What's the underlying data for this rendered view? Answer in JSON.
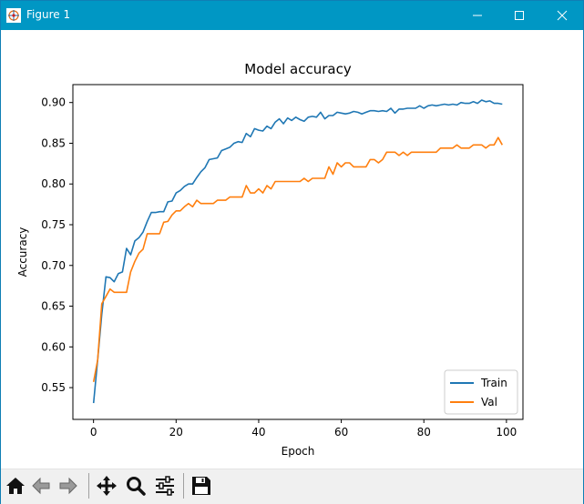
{
  "window": {
    "title": "Figure 1",
    "icons": {
      "app": "matplotlib-logo-icon",
      "minimize": "minimize-icon",
      "maximize": "maximize-icon",
      "close": "close-icon"
    }
  },
  "toolbar": {
    "buttons": [
      {
        "name": "home",
        "icon": "home-icon"
      },
      {
        "name": "back",
        "icon": "back-arrow-icon"
      },
      {
        "name": "forward",
        "icon": "forward-arrow-icon"
      },
      {
        "name": "pan",
        "icon": "pan-move-icon"
      },
      {
        "name": "zoom",
        "icon": "magnifier-icon"
      },
      {
        "name": "configure-subplots",
        "icon": "sliders-icon"
      },
      {
        "name": "save",
        "icon": "floppy-disk-icon"
      }
    ]
  },
  "colors": {
    "titlebar": "#0097c4",
    "train": "#1f77b4",
    "val": "#ff7f0e"
  },
  "chart_data": {
    "type": "line",
    "title": "Model accuracy",
    "xlabel": "Epoch",
    "ylabel": "Accuracy",
    "xlim": [
      -5,
      104
    ],
    "ylim": [
      0.511,
      0.922
    ],
    "xticks": [
      0,
      20,
      40,
      60,
      80,
      100
    ],
    "xtick_labels": [
      "0",
      "20",
      "40",
      "60",
      "80",
      "100"
    ],
    "yticks": [
      0.55,
      0.6,
      0.65,
      0.7,
      0.75,
      0.8,
      0.85,
      0.9
    ],
    "ytick_labels": [
      "0.55",
      "0.60",
      "0.65",
      "0.70",
      "0.75",
      "0.80",
      "0.85",
      "0.90"
    ],
    "legend_position": "lower-right",
    "grid": false,
    "series": [
      {
        "name": "Train",
        "color": "#1f77b4",
        "x": [
          0,
          1,
          2,
          3,
          4,
          5,
          6,
          7,
          8,
          9,
          10,
          11,
          12,
          13,
          14,
          15,
          16,
          17,
          18,
          19,
          20,
          21,
          22,
          23,
          24,
          25,
          26,
          27,
          28,
          29,
          30,
          31,
          32,
          33,
          34,
          35,
          36,
          37,
          38,
          39,
          40,
          41,
          42,
          43,
          44,
          45,
          46,
          47,
          48,
          49,
          50,
          51,
          52,
          53,
          54,
          55,
          56,
          57,
          58,
          59,
          60,
          61,
          62,
          63,
          64,
          65,
          66,
          67,
          68,
          69,
          70,
          71,
          72,
          73,
          74,
          75,
          76,
          77,
          78,
          79,
          80,
          81,
          82,
          83,
          84,
          85,
          86,
          87,
          88,
          89,
          90,
          91,
          92,
          93,
          94,
          95,
          96,
          97,
          98,
          99
        ],
        "y": [
          0.531,
          0.584,
          0.64,
          0.686,
          0.685,
          0.68,
          0.69,
          0.692,
          0.721,
          0.713,
          0.73,
          0.734,
          0.741,
          0.754,
          0.765,
          0.765,
          0.766,
          0.766,
          0.778,
          0.779,
          0.789,
          0.792,
          0.797,
          0.8,
          0.8,
          0.808,
          0.815,
          0.82,
          0.83,
          0.831,
          0.832,
          0.841,
          0.843,
          0.845,
          0.85,
          0.852,
          0.851,
          0.862,
          0.858,
          0.868,
          0.866,
          0.865,
          0.871,
          0.868,
          0.876,
          0.88,
          0.874,
          0.881,
          0.878,
          0.882,
          0.879,
          0.877,
          0.882,
          0.883,
          0.882,
          0.888,
          0.88,
          0.884,
          0.884,
          0.888,
          0.887,
          0.886,
          0.887,
          0.889,
          0.888,
          0.886,
          0.888,
          0.89,
          0.89,
          0.889,
          0.89,
          0.889,
          0.893,
          0.887,
          0.892,
          0.892,
          0.893,
          0.893,
          0.893,
          0.896,
          0.893,
          0.896,
          0.897,
          0.896,
          0.897,
          0.898,
          0.897,
          0.898,
          0.897,
          0.9,
          0.899,
          0.899,
          0.901,
          0.899,
          0.903,
          0.901,
          0.902,
          0.899,
          0.899,
          0.898
        ]
      },
      {
        "name": "Val",
        "color": "#ff7f0e",
        "x": [
          0,
          1,
          2,
          3,
          4,
          5,
          6,
          7,
          8,
          9,
          10,
          11,
          12,
          13,
          14,
          15,
          16,
          17,
          18,
          19,
          20,
          21,
          22,
          23,
          24,
          25,
          26,
          27,
          28,
          29,
          30,
          31,
          32,
          33,
          34,
          35,
          36,
          37,
          38,
          39,
          40,
          41,
          42,
          43,
          44,
          45,
          46,
          47,
          48,
          49,
          50,
          51,
          52,
          53,
          54,
          55,
          56,
          57,
          58,
          59,
          60,
          61,
          62,
          63,
          64,
          65,
          66,
          67,
          68,
          69,
          70,
          71,
          72,
          73,
          74,
          75,
          76,
          77,
          78,
          79,
          80,
          81,
          82,
          83,
          84,
          85,
          86,
          87,
          88,
          89,
          90,
          91,
          92,
          93,
          94,
          95,
          96,
          97,
          98,
          99
        ],
        "y": [
          0.557,
          0.584,
          0.653,
          0.662,
          0.671,
          0.667,
          0.667,
          0.667,
          0.667,
          0.692,
          0.705,
          0.715,
          0.72,
          0.739,
          0.739,
          0.739,
          0.739,
          0.753,
          0.754,
          0.762,
          0.767,
          0.767,
          0.772,
          0.776,
          0.772,
          0.78,
          0.776,
          0.776,
          0.776,
          0.776,
          0.78,
          0.78,
          0.78,
          0.784,
          0.784,
          0.784,
          0.784,
          0.798,
          0.789,
          0.789,
          0.794,
          0.789,
          0.798,
          0.794,
          0.803,
          0.803,
          0.803,
          0.803,
          0.803,
          0.803,
          0.803,
          0.807,
          0.803,
          0.807,
          0.807,
          0.807,
          0.807,
          0.821,
          0.812,
          0.826,
          0.821,
          0.826,
          0.826,
          0.821,
          0.821,
          0.821,
          0.821,
          0.83,
          0.83,
          0.826,
          0.83,
          0.839,
          0.839,
          0.839,
          0.835,
          0.839,
          0.835,
          0.839,
          0.839,
          0.839,
          0.839,
          0.839,
          0.839,
          0.839,
          0.844,
          0.844,
          0.844,
          0.844,
          0.848,
          0.844,
          0.844,
          0.844,
          0.848,
          0.848,
          0.848,
          0.844,
          0.848,
          0.848,
          0.857,
          0.848
        ]
      }
    ]
  }
}
